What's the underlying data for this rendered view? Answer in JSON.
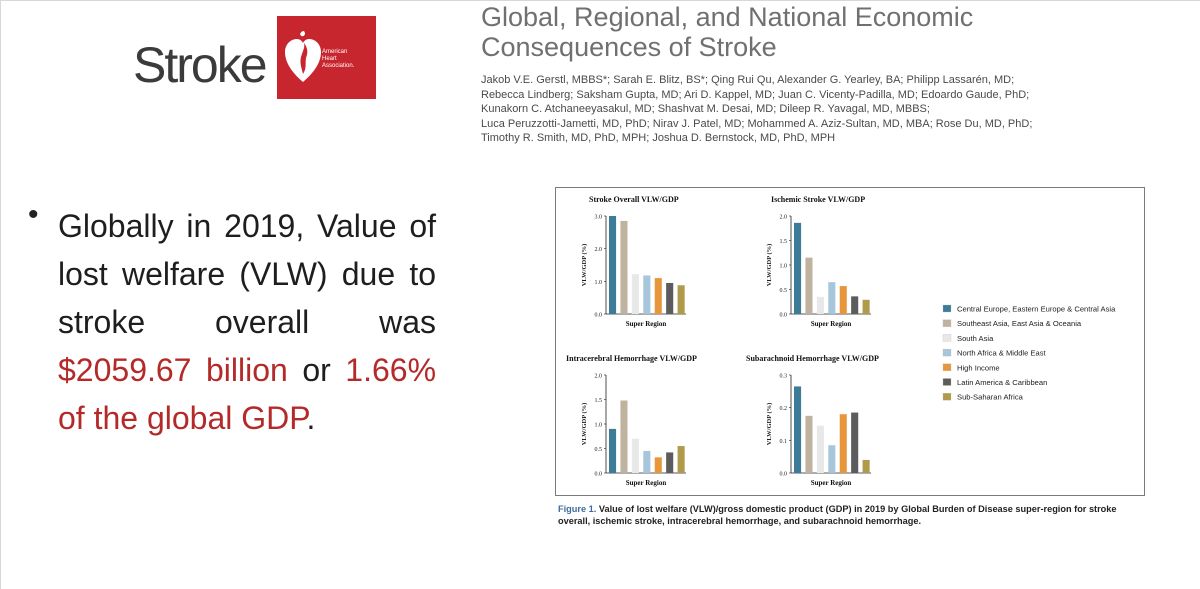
{
  "logo": {
    "wordmark": "Stroke",
    "aha_line1": "American",
    "aha_line2": "Heart",
    "aha_line3": "Association."
  },
  "paper": {
    "title_line1": "Global, Regional, and National Economic",
    "title_line2": "Consequences of Stroke",
    "authors": [
      "Jakob V.E. Gerstl, MBBS*; Sarah E. Blitz, BS*; Qing Rui Qu, Alexander G. Yearley, BA; Philipp Lassarén, MD;",
      "Rebecca Lindberg; Saksham Gupta, MD; Ari D. Kappel, MD; Juan C. Vicenty-Padilla, MD; Edoardo Gaude, PhD;",
      "Kunakorn C. Atchaneeyasakul, MD; Shashvat M. Desai, MD; Dileep R. Yavagal, MD, MBBS;",
      "Luca Peruzzotti-Jametti, MD, PhD; Nirav J. Patel, MD; Mohammed A. Aziz-Sultan, MD, MBA; Rose Du, MD, PhD;",
      "Timothy R. Smith, MD, PhD, MPH; Joshua D. Bernstock, MD, PhD, MPH"
    ]
  },
  "bullet": {
    "part1": "Globally in 2019, Value of lost welfare (VLW) due to stroke overall was ",
    "highlight1": "$2059.67 billion",
    "part2": " or ",
    "highlight2": "1.66% of the global GDP",
    "part3": "."
  },
  "figure": {
    "caption_label": "Figure 1.",
    "caption_text": " Value of lost welfare (VLW)/gross domestic product (GDP) in 2019 by Global Burden of Disease super-region for stroke overall, ischemic stroke, intracerebral hemorrhage, and subarachnoid hemorrhage."
  },
  "colors": {
    "red_highlight": "#b32a28",
    "aha_red": "#c8262e"
  },
  "chart_data": [
    {
      "type": "bar",
      "title": "Stroke Overall VLW/GDP",
      "xlabel": "Super Region",
      "ylabel": "VLW/GDP (%)",
      "ylim": [
        0,
        3.0
      ],
      "yticks": [
        "0.0",
        "1.0",
        "2.0",
        "3.0"
      ],
      "categories": [
        "Central Europe, Eastern Europe & Central Asia",
        "Southeast Asia, East Asia & Oceania",
        "South Asia",
        "North Africa & Middle East",
        "High Income",
        "Latin America & Caribbean",
        "Sub-Saharan Africa"
      ],
      "values": [
        3.0,
        2.85,
        1.22,
        1.18,
        1.1,
        0.95,
        0.88
      ]
    },
    {
      "type": "bar",
      "title": "Ischemic Stroke VLW/GDP",
      "xlabel": "Super Region",
      "ylabel": "VLW/GDP (%)",
      "ylim": [
        0,
        2.0
      ],
      "yticks": [
        "0.0",
        "0.5",
        "1.0",
        "1.5",
        "2.0"
      ],
      "categories": [
        "Central Europe, Eastern Europe & Central Asia",
        "Southeast Asia, East Asia & Oceania",
        "South Asia",
        "North Africa & Middle East",
        "High Income",
        "Latin America & Caribbean",
        "Sub-Saharan Africa"
      ],
      "values": [
        1.86,
        1.15,
        0.35,
        0.65,
        0.57,
        0.36,
        0.29
      ]
    },
    {
      "type": "bar",
      "title": "Intracerebral Hemorrhage VLW/GDP",
      "xlabel": "Super Region",
      "ylabel": "VLW/GDP (%)",
      "ylim": [
        0,
        2.0
      ],
      "yticks": [
        "0.0",
        "0.5",
        "1.0",
        "1.5",
        "2.0"
      ],
      "categories": [
        "Central Europe, Eastern Europe & Central Asia",
        "Southeast Asia, East Asia & Oceania",
        "South Asia",
        "North Africa & Middle East",
        "High Income",
        "Latin America & Caribbean",
        "Sub-Saharan Africa"
      ],
      "values": [
        0.9,
        1.48,
        0.7,
        0.45,
        0.32,
        0.42,
        0.55
      ]
    },
    {
      "type": "bar",
      "title": "Subarachnoid Hemorrhage VLW/GDP",
      "xlabel": "Super Region",
      "ylabel": "VLW/GDP (%)",
      "ylim": [
        0,
        0.3
      ],
      "yticks": [
        "0.0",
        "0.1",
        "0.2",
        "0.3"
      ],
      "categories": [
        "Central Europe, Eastern Europe & Central Asia",
        "Southeast Asia, East Asia & Oceania",
        "South Asia",
        "North Africa & Middle East",
        "High Income",
        "Latin America & Caribbean",
        "Sub-Saharan Africa"
      ],
      "values": [
        0.265,
        0.175,
        0.145,
        0.085,
        0.18,
        0.185,
        0.04
      ]
    }
  ],
  "legend": [
    {
      "label": "Central Europe, Eastern Europe & Central Asia",
      "color": "#3d7c98"
    },
    {
      "label": "Southeast Asia, East Asia & Oceania",
      "color": "#bfb39f"
    },
    {
      "label": "South Asia",
      "color": "#e8e8e8"
    },
    {
      "label": "North Africa & Middle East",
      "color": "#a8c6db"
    },
    {
      "label": "High Income",
      "color": "#e8963c"
    },
    {
      "label": "Latin America & Caribbean",
      "color": "#5c5c5c"
    },
    {
      "label": "Sub-Saharan Africa",
      "color": "#b09a4c"
    }
  ]
}
